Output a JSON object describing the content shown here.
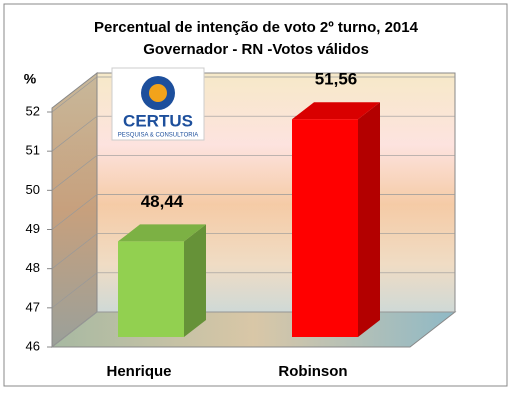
{
  "chart_data": {
    "type": "bar3d",
    "title": [
      "Percentual de intenção de voto 2º turno, 2014",
      "Governador - RN -Votos válidos"
    ],
    "y_label": "%",
    "categories": [
      "Henrique",
      "Robinson"
    ],
    "values": [
      48.44,
      51.56
    ],
    "value_labels": [
      "48,44",
      "51,56"
    ],
    "colors": [
      "#92d050",
      "#ff0000"
    ],
    "ylim": [
      46,
      52
    ],
    "yticks": [
      46,
      47,
      48,
      49,
      50,
      51,
      52
    ],
    "grid": true,
    "logo": {
      "name": "CERTUS",
      "tagline": "PESQUISA & CONSULTORIA"
    }
  }
}
